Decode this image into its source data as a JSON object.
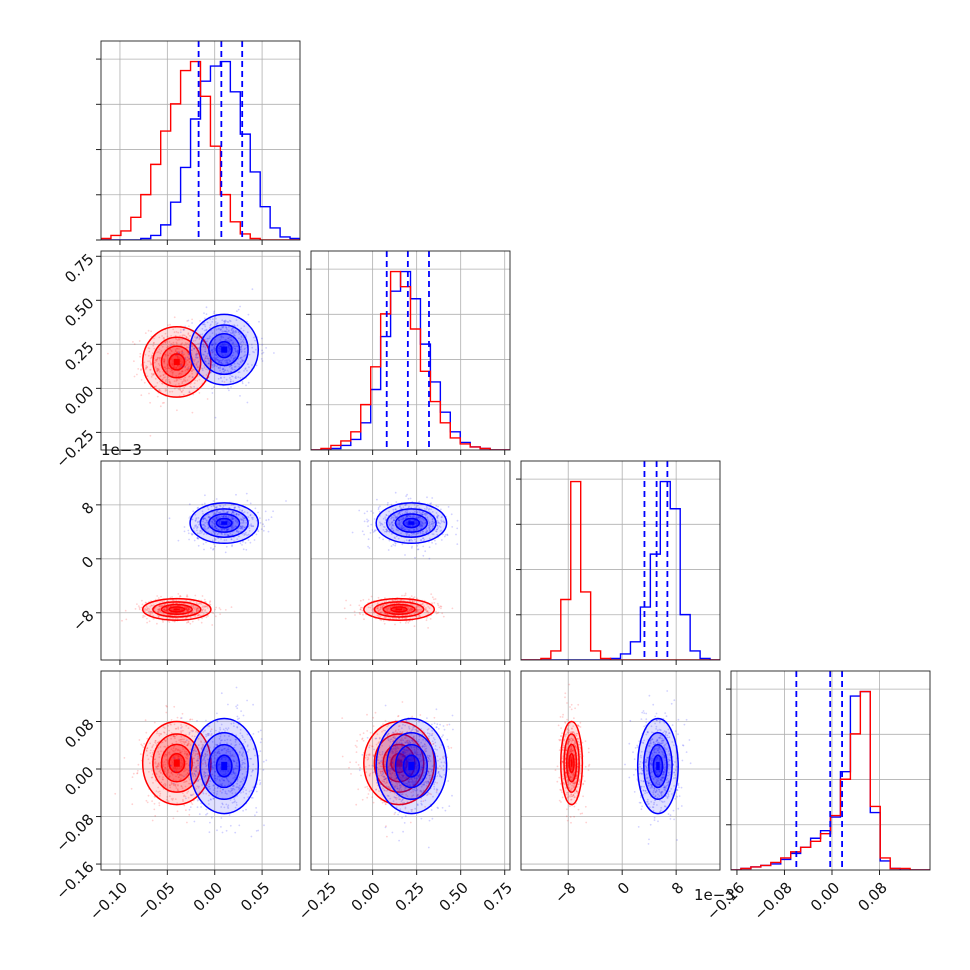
{
  "chart_data": {
    "type": "corner",
    "n_params": 4,
    "series": [
      {
        "name": "",
        "color": "#ff0000",
        "means": [
          -0.04,
          0.15,
          -0.0075,
          0.01
        ],
        "sds": [
          0.018,
          0.1,
          0.0008,
          0.035
        ]
      },
      {
        "name": "",
        "color": "#0000ff",
        "means": [
          0.01,
          0.22,
          0.0053,
          0.005
        ],
        "sds": [
          0.018,
          0.1,
          0.0015,
          0.04
        ]
      }
    ],
    "axes": [
      {
        "range": [
          -0.12,
          0.09
        ],
        "ticks": [
          -0.1,
          -0.05,
          0.0,
          0.05
        ],
        "tick_labels": [
          "−0.10",
          "−0.05",
          "0.00",
          "0.05"
        ],
        "offset_label": ""
      },
      {
        "range": [
          -0.35,
          0.78
        ],
        "ticks": [
          -0.25,
          0.0,
          0.25,
          0.5,
          0.75
        ],
        "tick_labels": [
          "−0.25",
          "0.00",
          "0.25",
          "0.50",
          "0.75"
        ],
        "offset_label": ""
      },
      {
        "range": [
          -0.015,
          0.0145
        ],
        "ticks": [
          -0.008,
          0.0,
          0.008
        ],
        "tick_labels": [
          "−8",
          "0",
          "8"
        ],
        "offset_label": "1e−3"
      },
      {
        "range": [
          -0.17,
          0.165
        ],
        "ticks": [
          -0.16,
          -0.08,
          0.0,
          0.08
        ],
        "tick_labels": [
          "−0.16",
          "−0.08",
          "0.00",
          "0.08"
        ],
        "offset_label": ""
      }
    ],
    "quantile_lines": {
      "color": "#0000ff",
      "values": [
        [
          -0.017,
          0.007,
          0.029
        ],
        [
          0.08,
          0.2,
          0.32
        ],
        [
          0.0033,
          0.0051,
          0.0067
        ],
        [
          -0.06,
          -0.003,
          0.017
        ]
      ]
    },
    "histograms": [
      {
        "bins": 20,
        "red": [
          1,
          3,
          6,
          15,
          30,
          50,
          72,
          90,
          112,
          118,
          95,
          62,
          30,
          12,
          4,
          1,
          0,
          0,
          0,
          0
        ],
        "blue": [
          0,
          0,
          0,
          0,
          1,
          3,
          10,
          25,
          48,
          80,
          105,
          115,
          118,
          98,
          70,
          45,
          22,
          8,
          2,
          1
        ]
      },
      {
        "bins": 20,
        "red": [
          0,
          1,
          3,
          6,
          12,
          30,
          55,
          90,
          118,
          108,
          80,
          52,
          32,
          18,
          8,
          4,
          2,
          1,
          0,
          0
        ],
        "blue": [
          0,
          0,
          1,
          3,
          7,
          18,
          40,
          75,
          105,
          118,
          100,
          70,
          45,
          25,
          12,
          5,
          2,
          1,
          0,
          0
        ]
      },
      {
        "bins": 20,
        "red": [
          0,
          0,
          1,
          6,
          40,
          118,
          45,
          6,
          1,
          0,
          0,
          0,
          0,
          0,
          0,
          0,
          0,
          0,
          0,
          0
        ],
        "blue": [
          0,
          0,
          0,
          0,
          0,
          0,
          0,
          0,
          0,
          1,
          4,
          12,
          35,
          70,
          118,
          100,
          30,
          6,
          1,
          0
        ]
      },
      {
        "bins": 20,
        "red": [
          0,
          1,
          2,
          3,
          5,
          8,
          12,
          15,
          19,
          24,
          36,
          60,
          90,
          118,
          42,
          8,
          1,
          1,
          0,
          0
        ],
        "blue": [
          0,
          1,
          2,
          3,
          4,
          7,
          11,
          15,
          21,
          26,
          35,
          65,
          115,
          118,
          38,
          6,
          1,
          0,
          0,
          0
        ]
      }
    ],
    "grid": true,
    "legend": "none"
  }
}
